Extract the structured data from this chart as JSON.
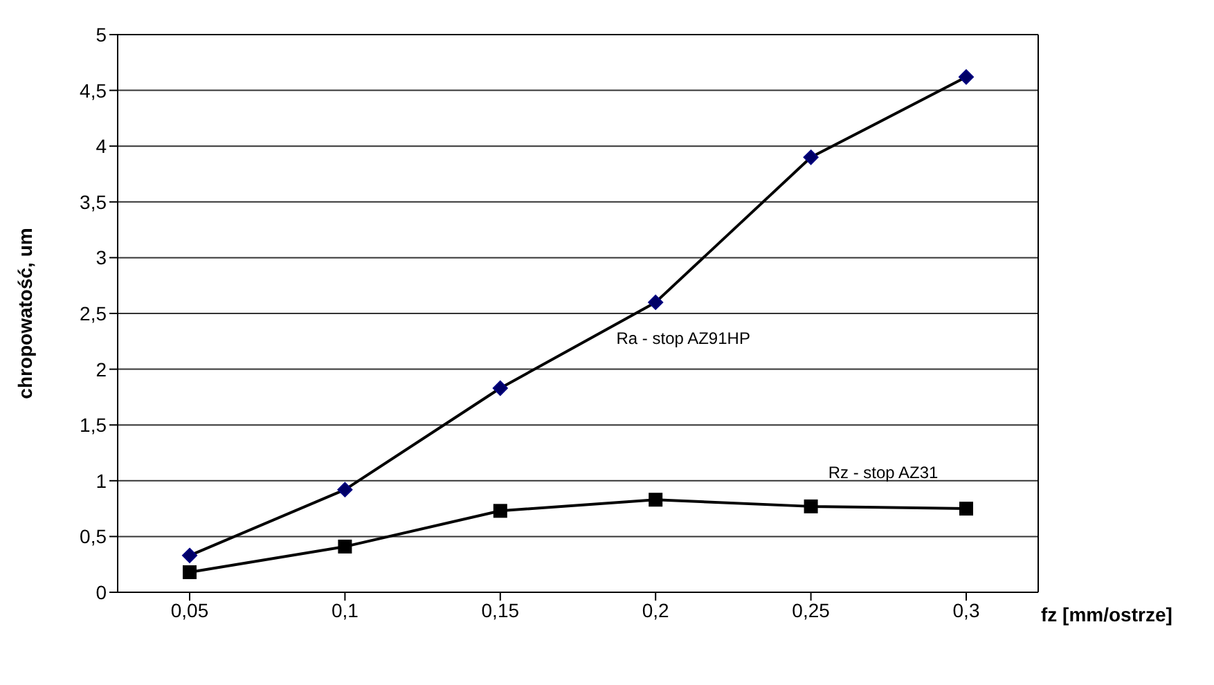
{
  "chart_data": {
    "type": "line",
    "xlabel": "fz [mm/ostrze]",
    "ylabel": "chropowatość, um",
    "categories": [
      "0,05",
      "0,1",
      "0,15",
      "0,2",
      "0,25",
      "0,3"
    ],
    "series": [
      {
        "name": "Ra - stop AZ91HP",
        "color": "#000066",
        "marker": "diamond",
        "values": [
          0.33,
          0.92,
          1.83,
          2.6,
          3.9,
          4.62
        ]
      },
      {
        "name": "Rz - stop AZ31",
        "color": "#000000",
        "marker": "square",
        "values": [
          0.18,
          0.41,
          0.73,
          0.83,
          0.77,
          0.75
        ]
      }
    ],
    "ylim": [
      0,
      5
    ],
    "yticks": [
      0,
      {
        "value": 0.5,
        "label": "0,5"
      },
      1,
      {
        "value": 1.5,
        "label": "1,5"
      },
      2,
      {
        "value": 2.5,
        "label": "2,5"
      },
      3,
      {
        "value": 3.5,
        "label": "3,5"
      },
      4,
      {
        "value": 4.5,
        "label": "4,5"
      },
      5
    ],
    "grid": "y",
    "legend": false,
    "line_style": "solid"
  }
}
